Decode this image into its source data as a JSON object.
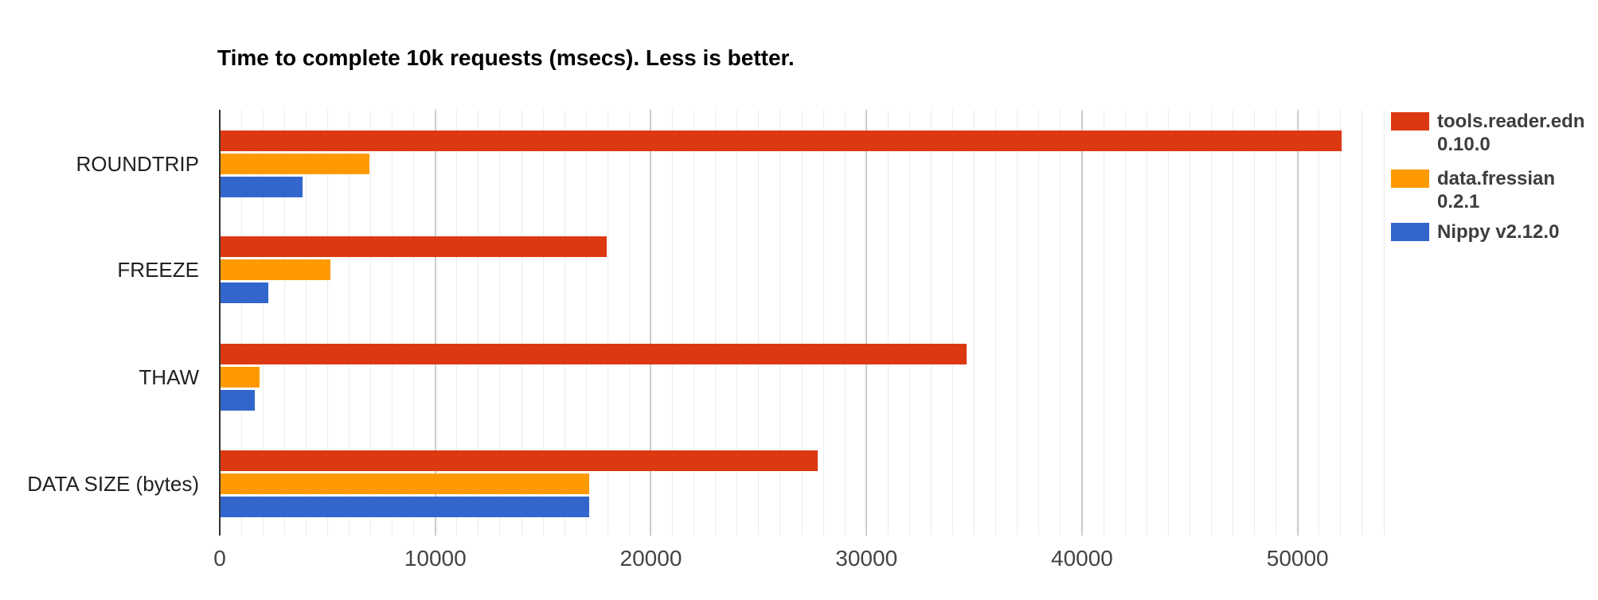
{
  "chart_data": {
    "type": "bar",
    "orientation": "horizontal",
    "title": "Time to complete 10k requests (msecs). Less is better.",
    "categories": [
      "ROUNDTRIP",
      "FREEZE",
      "THAW",
      "DATA SIZE (bytes)"
    ],
    "series": [
      {
        "name": "tools.reader.edn 0.10.0",
        "name_lines": [
          "tools.reader.edn",
          "0.10.0"
        ],
        "color": "#dc3912",
        "values": [
          52000,
          17900,
          34600,
          27700
        ]
      },
      {
        "name": "data.fressian 0.2.1",
        "name_lines": [
          "data.fressian",
          "0.2.1"
        ],
        "color": "#ff9900",
        "values": [
          6900,
          5100,
          1800,
          17100
        ]
      },
      {
        "name": "Nippy v2.12.0",
        "name_lines": [
          "Nippy v2.12.0"
        ],
        "color": "#3366cc",
        "values": [
          3800,
          2200,
          1600,
          17100
        ]
      }
    ],
    "x_ticks": [
      0,
      10000,
      20000,
      30000,
      40000,
      50000
    ],
    "x_tick_labels": [
      "0",
      "10000",
      "20000",
      "30000",
      "40000",
      "50000"
    ],
    "xlim": [
      0,
      54000
    ],
    "xlabel": "",
    "ylabel": "",
    "grid": "vertical minor lines every 1000, major lines every 10000",
    "legend_position": "right",
    "axis_color": "#333333",
    "gridline_minor_color": "#ececec",
    "gridline_major_color": "#cccccc",
    "background_color": "#ffffff"
  }
}
